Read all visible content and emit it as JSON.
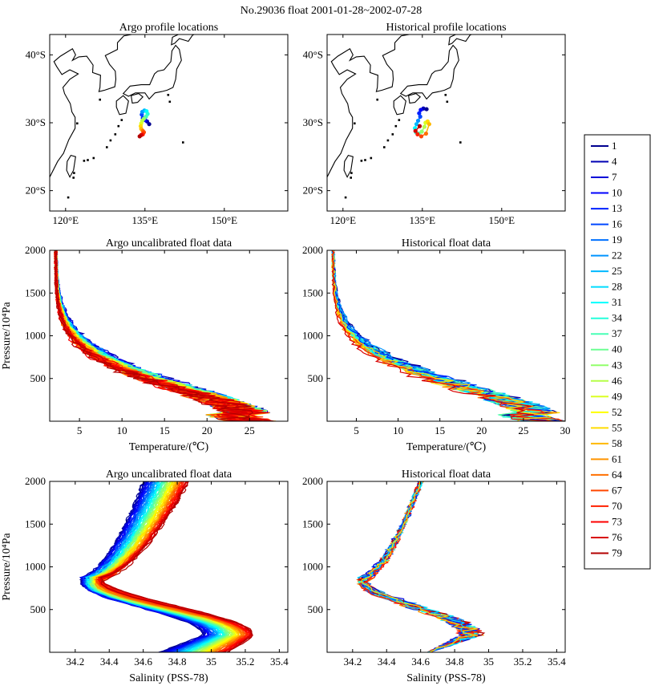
{
  "title": "No.29036 float 2001-01-28~2002-07-28",
  "colorbar": {
    "labels": [
      "1",
      "4",
      "7",
      "10",
      "13",
      "16",
      "19",
      "22",
      "25",
      "28",
      "31",
      "34",
      "37",
      "40",
      "43",
      "46",
      "49",
      "52",
      "55",
      "58",
      "61",
      "64",
      "67",
      "70",
      "73",
      "76",
      "79"
    ],
    "colors": [
      "#00008f",
      "#0000b3",
      "#0000d8",
      "#0000fd",
      "#0020ff",
      "#0048ff",
      "#0070ff",
      "#0094ff",
      "#00b8ff",
      "#00dcff",
      "#00ffff",
      "#24ffdb",
      "#48ffb6",
      "#6cff92",
      "#92ff6c",
      "#b6ff48",
      "#dbff24",
      "#ffff00",
      "#ffdc00",
      "#ffb800",
      "#ff9400",
      "#ff7000",
      "#ff4800",
      "#ff2000",
      "#fd0000",
      "#d80000",
      "#b30000"
    ]
  },
  "chart_data": [
    {
      "type": "map",
      "title": "Argo profile locations",
      "xlim": [
        117,
        162
      ],
      "ylim": [
        17,
        43
      ],
      "xticks": [
        {
          "v": 120,
          "label": "120°E"
        },
        {
          "v": 135,
          "label": "135°E"
        },
        {
          "v": 150,
          "label": "150°E"
        }
      ],
      "yticks": [
        {
          "v": 20,
          "label": "20°S"
        },
        {
          "v": 30,
          "label": "30°S"
        },
        {
          "v": 40,
          "label": "40°S"
        }
      ],
      "track": [
        [
          135.8,
          29.8
        ],
        [
          135.4,
          30.2
        ],
        [
          135.0,
          30.4
        ],
        [
          134.6,
          30.7
        ],
        [
          134.4,
          31.2
        ],
        [
          134.5,
          31.6
        ],
        [
          134.9,
          31.8
        ],
        [
          135.3,
          31.7
        ],
        [
          135.5,
          31.3
        ],
        [
          135.2,
          30.9
        ],
        [
          134.8,
          30.6
        ],
        [
          134.5,
          30.3
        ],
        [
          134.3,
          29.9
        ],
        [
          134.2,
          29.5
        ],
        [
          134.3,
          29.1
        ],
        [
          134.6,
          28.8
        ],
        [
          134.8,
          28.6
        ],
        [
          134.6,
          28.3
        ],
        [
          134.3,
          28.2
        ],
        [
          134.0,
          28.0
        ]
      ],
      "coast_land": "mainland",
      "coast_islands": "japan"
    },
    {
      "type": "map",
      "title": "Historical profile locations",
      "xlim": [
        117,
        162
      ],
      "ylim": [
        17,
        43
      ],
      "xticks": [
        {
          "v": 120,
          "label": "120°E"
        },
        {
          "v": 135,
          "label": "135°E"
        },
        {
          "v": 150,
          "label": "150°E"
        }
      ],
      "yticks": [
        {
          "v": 20,
          "label": "20°S"
        },
        {
          "v": 30,
          "label": "30°S"
        },
        {
          "v": 40,
          "label": "40°S"
        }
      ],
      "track": [
        [
          135.8,
          32.0
        ],
        [
          135.2,
          32.1
        ],
        [
          134.7,
          31.9
        ],
        [
          134.4,
          31.4
        ],
        [
          134.6,
          30.9
        ],
        [
          134.2,
          30.3
        ],
        [
          133.9,
          29.8
        ],
        [
          133.6,
          29.2
        ],
        [
          133.8,
          28.6
        ],
        [
          134.3,
          28.4
        ],
        [
          134.9,
          28.7
        ],
        [
          135.4,
          29.4
        ],
        [
          135.6,
          30.0
        ],
        [
          136.0,
          30.2
        ],
        [
          136.3,
          29.8
        ],
        [
          135.7,
          28.4
        ],
        [
          134.8,
          28.0
        ],
        [
          134.1,
          28.3
        ],
        [
          133.7,
          28.8
        ],
        [
          134.5,
          29.5
        ]
      ]
    },
    {
      "type": "line",
      "title": "Argo uncalibrated float data",
      "xlabel": "Temperature/(℃)",
      "ylabel": "Pressure/10⁴Pa",
      "xlim": [
        1.5,
        29.5
      ],
      "ylim": [
        2000,
        0
      ],
      "xticks": [
        5,
        10,
        15,
        20,
        25
      ],
      "yticks": [
        500,
        1000,
        1500,
        2000
      ],
      "profile": "temp",
      "n_series": 79,
      "legend": "colorbar-right"
    },
    {
      "type": "line",
      "title": "Historical  float data",
      "xlabel": "Temperature/(℃)",
      "ylabel": "",
      "xlim": [
        1.5,
        30
      ],
      "ylim": [
        2000,
        0
      ],
      "xticks": [
        5,
        10,
        15,
        20,
        25,
        30
      ],
      "yticks": [
        500,
        1000,
        1500,
        2000
      ],
      "profile": "temp_hist",
      "n_series": 30
    },
    {
      "type": "line",
      "title": "Argo uncalibrated float data",
      "xlabel": "Salinity (PSS-78)",
      "ylabel": "Pressure/10⁴Pa",
      "xlim": [
        34.05,
        35.45
      ],
      "ylim": [
        2000,
        0
      ],
      "xticks": [
        34.2,
        34.4,
        34.6,
        34.8,
        35,
        35.2,
        35.4
      ],
      "xticklabels": [
        "34.2",
        "34.4",
        "34.6",
        "34.8",
        "35",
        "35.2",
        "35.4"
      ],
      "yticks": [
        500,
        1000,
        1500,
        2000
      ],
      "profile": "sal",
      "n_series": 79
    },
    {
      "type": "line",
      "title": "Historical  float data",
      "xlabel": "Salinity (PSS-78)",
      "ylabel": "",
      "xlim": [
        34.05,
        35.45
      ],
      "ylim": [
        2000,
        0
      ],
      "xticks": [
        34.2,
        34.4,
        34.6,
        34.8,
        35,
        35.2,
        35.4
      ],
      "xticklabels": [
        "34.2",
        "34.4",
        "34.6",
        "34.8",
        "35",
        "35.2",
        "35.4"
      ],
      "yticks": [
        500,
        1000,
        1500,
        2000
      ],
      "profile": "sal_hist",
      "n_series": 30
    }
  ]
}
